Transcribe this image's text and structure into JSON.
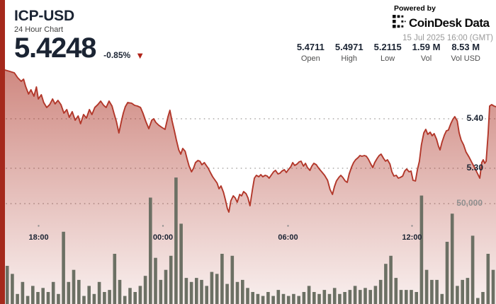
{
  "header": {
    "symbol": "ICP-USD",
    "subtitle": "24 Hour Chart",
    "price": "5.4248",
    "change": "-0.85%",
    "direction_glyph": "▼"
  },
  "branding": {
    "powered_by": "Powered by",
    "logo_icon": "coindesk-dots-icon",
    "logo_text": "CoinDesk Data",
    "timestamp": "15 Jul 2025 16:00 (GMT)"
  },
  "stats": [
    {
      "value": "5.4711",
      "label": "Open"
    },
    {
      "value": "5.4971",
      "label": "High"
    },
    {
      "value": "5.2115",
      "label": "Low"
    },
    {
      "value": "1.59 M",
      "label": "Vol"
    },
    {
      "value": "8.53 M",
      "label": "Vol USD"
    }
  ],
  "colors": {
    "accent_bar": "#a5291c",
    "line": "#b2372a",
    "area_top": "rgba(168,40,26,0.55)",
    "area_bottom": "rgba(168,40,26,0.07)",
    "volume_bar": "#6c7064",
    "grid_dot": "#b1aeac",
    "navy_text": "#1b2433",
    "gray_text": "#8f8f8f",
    "triangle_red": "#b02318"
  },
  "chart_data": {
    "type": "area",
    "title": "ICP-USD 24 Hour Chart",
    "last_price": 5.4248,
    "change_pct": -0.85,
    "y_axis": {
      "labels": [
        "5.40",
        "5.30"
      ],
      "values": [
        5.4,
        5.3
      ],
      "side": "right"
    },
    "volume_axis": {
      "label": "50,000",
      "value": 50000
    },
    "x_axis": {
      "labels": [
        "18:00",
        "00:00",
        "06:00",
        "12:00"
      ],
      "fracs": [
        0.0686,
        0.3218,
        0.5765,
        0.829
      ]
    },
    "grid": "dotted-horizontal",
    "price_series": [
      [
        0,
        5.4986
      ],
      [
        0.01,
        5.4957
      ],
      [
        0.019,
        5.4929
      ],
      [
        0.026,
        5.4829
      ],
      [
        0.033,
        5.4757
      ],
      [
        0.038,
        5.48
      ],
      [
        0.042,
        5.4657
      ],
      [
        0.048,
        5.45
      ],
      [
        0.053,
        5.4586
      ],
      [
        0.059,
        5.4457
      ],
      [
        0.064,
        5.4643
      ],
      [
        0.068,
        5.44
      ],
      [
        0.074,
        5.4486
      ],
      [
        0.079,
        5.4329
      ],
      [
        0.085,
        5.4229
      ],
      [
        0.091,
        5.4286
      ],
      [
        0.097,
        5.44
      ],
      [
        0.102,
        5.43
      ],
      [
        0.108,
        5.4371
      ],
      [
        0.114,
        5.4286
      ],
      [
        0.12,
        5.4114
      ],
      [
        0.126,
        5.4186
      ],
      [
        0.131,
        5.4029
      ],
      [
        0.137,
        5.4143
      ],
      [
        0.143,
        5.3971
      ],
      [
        0.149,
        5.4057
      ],
      [
        0.154,
        5.39
      ],
      [
        0.16,
        5.4086
      ],
      [
        0.166,
        5.4014
      ],
      [
        0.172,
        5.4186
      ],
      [
        0.177,
        5.4086
      ],
      [
        0.183,
        5.4229
      ],
      [
        0.189,
        5.4286
      ],
      [
        0.195,
        5.4357
      ],
      [
        0.201,
        5.4271
      ],
      [
        0.206,
        5.4229
      ],
      [
        0.212,
        5.4357
      ],
      [
        0.218,
        5.4257
      ],
      [
        0.222,
        5.4114
      ],
      [
        0.227,
        5.3943
      ],
      [
        0.232,
        5.3714
      ],
      [
        0.237,
        5.3943
      ],
      [
        0.241,
        5.4114
      ],
      [
        0.245,
        5.4243
      ],
      [
        0.25,
        5.4329
      ],
      [
        0.258,
        5.4314
      ],
      [
        0.264,
        5.4271
      ],
      [
        0.27,
        5.4257
      ],
      [
        0.276,
        5.4229
      ],
      [
        0.281,
        5.4114
      ],
      [
        0.287,
        5.3943
      ],
      [
        0.293,
        5.38
      ],
      [
        0.299,
        5.3971
      ],
      [
        0.303,
        5.4
      ],
      [
        0.307,
        5.3929
      ],
      [
        0.313,
        5.3871
      ],
      [
        0.319,
        5.3829
      ],
      [
        0.326,
        5.3786
      ],
      [
        0.332,
        5.4043
      ],
      [
        0.336,
        5.4171
      ],
      [
        0.34,
        5.3971
      ],
      [
        0.345,
        5.3757
      ],
      [
        0.349,
        5.3571
      ],
      [
        0.354,
        5.3371
      ],
      [
        0.358,
        5.3286
      ],
      [
        0.362,
        5.34
      ],
      [
        0.367,
        5.3343
      ],
      [
        0.371,
        5.3186
      ],
      [
        0.375,
        5.3043
      ],
      [
        0.38,
        5.2929
      ],
      [
        0.384,
        5.3
      ],
      [
        0.388,
        5.3114
      ],
      [
        0.393,
        5.3157
      ],
      [
        0.397,
        5.3143
      ],
      [
        0.401,
        5.3071
      ],
      [
        0.406,
        5.3114
      ],
      [
        0.41,
        5.3057
      ],
      [
        0.414,
        5.3
      ],
      [
        0.419,
        5.29
      ],
      [
        0.423,
        5.2829
      ],
      [
        0.427,
        5.2771
      ],
      [
        0.432,
        5.27
      ],
      [
        0.436,
        5.2586
      ],
      [
        0.44,
        5.2643
      ],
      [
        0.445,
        5.2514
      ],
      [
        0.449,
        5.2357
      ],
      [
        0.453,
        5.2186
      ],
      [
        0.456,
        5.2114
      ],
      [
        0.46,
        5.2343
      ],
      [
        0.465,
        5.2443
      ],
      [
        0.469,
        5.24
      ],
      [
        0.473,
        5.2314
      ],
      [
        0.478,
        5.2471
      ],
      [
        0.482,
        5.2443
      ],
      [
        0.486,
        5.2529
      ],
      [
        0.491,
        5.2486
      ],
      [
        0.495,
        5.24
      ],
      [
        0.499,
        5.2243
      ],
      [
        0.504,
        5.2571
      ],
      [
        0.508,
        5.28
      ],
      [
        0.512,
        5.2857
      ],
      [
        0.517,
        5.2829
      ],
      [
        0.521,
        5.2871
      ],
      [
        0.525,
        5.2829
      ],
      [
        0.53,
        5.2857
      ],
      [
        0.534,
        5.2843
      ],
      [
        0.538,
        5.28
      ],
      [
        0.543,
        5.2871
      ],
      [
        0.547,
        5.2929
      ],
      [
        0.551,
        5.2957
      ],
      [
        0.556,
        5.2886
      ],
      [
        0.56,
        5.29
      ],
      [
        0.564,
        5.2943
      ],
      [
        0.569,
        5.2971
      ],
      [
        0.573,
        5.2914
      ],
      [
        0.577,
        5.2971
      ],
      [
        0.582,
        5.3029
      ],
      [
        0.586,
        5.3114
      ],
      [
        0.59,
        5.3057
      ],
      [
        0.595,
        5.3086
      ],
      [
        0.599,
        5.3129
      ],
      [
        0.603,
        5.3143
      ],
      [
        0.608,
        5.3043
      ],
      [
        0.612,
        5.31
      ],
      [
        0.616,
        5.3014
      ],
      [
        0.621,
        5.2957
      ],
      [
        0.625,
        5.3043
      ],
      [
        0.629,
        5.31
      ],
      [
        0.634,
        5.3071
      ],
      [
        0.639,
        5.3
      ],
      [
        0.645,
        5.2929
      ],
      [
        0.651,
        5.2857
      ],
      [
        0.657,
        5.2757
      ],
      [
        0.662,
        5.2571
      ],
      [
        0.667,
        5.2471
      ],
      [
        0.671,
        5.2629
      ],
      [
        0.675,
        5.2743
      ],
      [
        0.68,
        5.2814
      ],
      [
        0.684,
        5.2857
      ],
      [
        0.688,
        5.2814
      ],
      [
        0.693,
        5.2743
      ],
      [
        0.697,
        5.2714
      ],
      [
        0.701,
        5.2886
      ],
      [
        0.706,
        5.3029
      ],
      [
        0.71,
        5.3114
      ],
      [
        0.714,
        5.3171
      ],
      [
        0.719,
        5.3214
      ],
      [
        0.723,
        5.3257
      ],
      [
        0.727,
        5.3243
      ],
      [
        0.732,
        5.3257
      ],
      [
        0.736,
        5.3243
      ],
      [
        0.74,
        5.3186
      ],
      [
        0.745,
        5.3086
      ],
      [
        0.749,
        5.3014
      ],
      [
        0.753,
        5.3114
      ],
      [
        0.758,
        5.32
      ],
      [
        0.762,
        5.3257
      ],
      [
        0.766,
        5.3286
      ],
      [
        0.771,
        5.32
      ],
      [
        0.775,
        5.3143
      ],
      [
        0.779,
        5.3171
      ],
      [
        0.784,
        5.3086
      ],
      [
        0.788,
        5.2929
      ],
      [
        0.792,
        5.2843
      ],
      [
        0.797,
        5.2857
      ],
      [
        0.801,
        5.28
      ],
      [
        0.805,
        5.2814
      ],
      [
        0.81,
        5.2843
      ],
      [
        0.814,
        5.2943
      ],
      [
        0.818,
        5.2986
      ],
      [
        0.823,
        5.2929
      ],
      [
        0.827,
        5.2943
      ],
      [
        0.831,
        5.2757
      ],
      [
        0.836,
        5.2743
      ],
      [
        0.84,
        5.2971
      ],
      [
        0.844,
        5.3143
      ],
      [
        0.848,
        5.3471
      ],
      [
        0.853,
        5.3714
      ],
      [
        0.857,
        5.3786
      ],
      [
        0.861,
        5.3686
      ],
      [
        0.866,
        5.3729
      ],
      [
        0.87,
        5.3657
      ],
      [
        0.874,
        5.37
      ],
      [
        0.879,
        5.3586
      ],
      [
        0.883,
        5.3443
      ],
      [
        0.886,
        5.3371
      ],
      [
        0.89,
        5.3529
      ],
      [
        0.895,
        5.3671
      ],
      [
        0.899,
        5.3757
      ],
      [
        0.903,
        5.3771
      ],
      [
        0.908,
        5.39
      ],
      [
        0.912,
        5.3986
      ],
      [
        0.916,
        5.4043
      ],
      [
        0.921,
        5.3957
      ],
      [
        0.925,
        5.3714
      ],
      [
        0.929,
        5.3571
      ],
      [
        0.934,
        5.3471
      ],
      [
        0.939,
        5.3329
      ],
      [
        0.945,
        5.3229
      ],
      [
        0.951,
        5.3114
      ],
      [
        0.957,
        5.3
      ],
      [
        0.962,
        5.29
      ],
      [
        0.967,
        5.28
      ],
      [
        0.971,
        5.3114
      ],
      [
        0.974,
        5.3171
      ],
      [
        0.977,
        5.31
      ],
      [
        0.98,
        5.3143
      ],
      [
        0.984,
        5.37
      ],
      [
        0.987,
        5.4257
      ],
      [
        0.991,
        5.4286
      ],
      [
        0.996,
        5.4257
      ],
      [
        1,
        5.4243
      ]
    ],
    "volume_series": [
      19000,
      15000,
      5000,
      11000,
      4000,
      9000,
      6000,
      8000,
      6000,
      11000,
      5000,
      36000,
      11000,
      17000,
      12000,
      4000,
      9000,
      5000,
      11000,
      6000,
      7000,
      25000,
      12000,
      4000,
      8000,
      6000,
      9000,
      14000,
      53000,
      23000,
      12000,
      17000,
      24000,
      63000,
      40000,
      13000,
      11000,
      13000,
      12000,
      9000,
      16000,
      15000,
      25000,
      10000,
      24000,
      11000,
      12000,
      8000,
      6000,
      5000,
      4000,
      6000,
      4000,
      7000,
      5000,
      4000,
      5000,
      4000,
      6000,
      9000,
      6000,
      5000,
      7000,
      5000,
      8000,
      5000,
      6000,
      7000,
      9000,
      7000,
      8000,
      7000,
      9000,
      12000,
      20000,
      24000,
      13000,
      7000,
      7000,
      7000,
      6000,
      54000,
      17000,
      12000,
      12000,
      5000,
      31000,
      45000,
      9000,
      12000,
      13000,
      34000,
      3000,
      6000,
      25000,
      17000
    ]
  }
}
